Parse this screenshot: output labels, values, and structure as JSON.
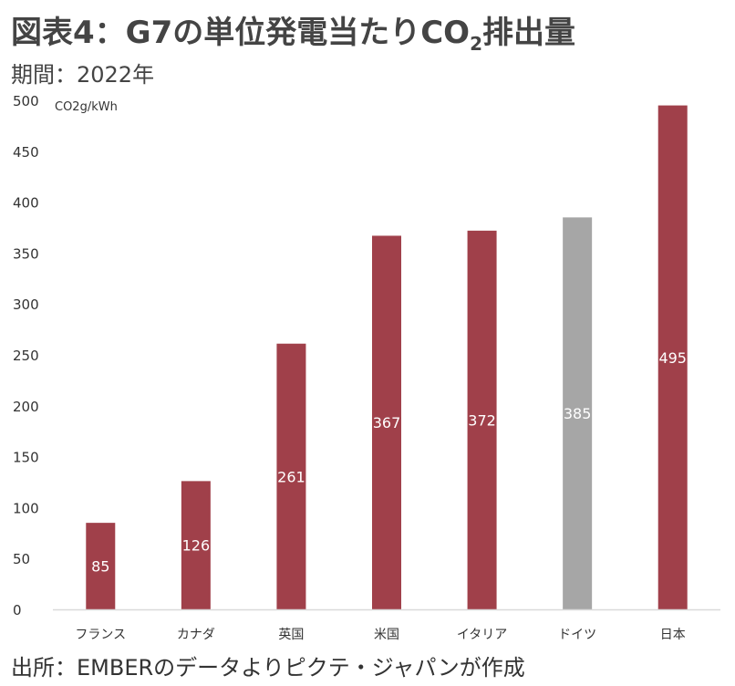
{
  "title_main": "図表4：G7の単位発電当たりCO",
  "title_sub": "2",
  "title_tail": "排出量",
  "period": "期間：2022年",
  "source": "出所：EMBERのデータよりピクテ・ジャパンが作成",
  "colors": {
    "primary": "#a0404a",
    "highlight": "#a6a6a6",
    "axis": "#d9d9d9"
  },
  "chart_data": {
    "type": "bar",
    "title": "図表4：G7の単位発電当たりCO2排出量",
    "ylabel": "CO2g/kWh",
    "xlabel": "",
    "ylim": [
      0,
      500
    ],
    "yticks": [
      0,
      50,
      100,
      150,
      200,
      250,
      300,
      350,
      400,
      450,
      500
    ],
    "grid": false,
    "categories": [
      "フランス",
      "カナダ",
      "英国",
      "米国",
      "イタリア",
      "ドイツ",
      "日本"
    ],
    "values": [
      85,
      126,
      261,
      367,
      372,
      385,
      495
    ],
    "labels": [
      "85",
      "126",
      "261",
      "367",
      "372",
      "385",
      "495"
    ],
    "highlight": "ドイツ"
  }
}
